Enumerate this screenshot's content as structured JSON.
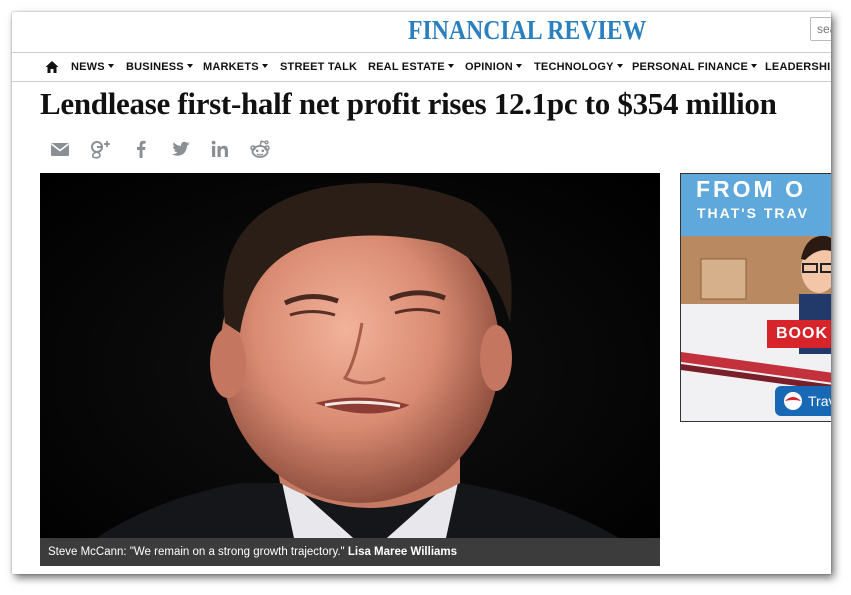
{
  "site": {
    "logo": "FINANCIAL REVIEW",
    "search_placeholder": "sea"
  },
  "nav": {
    "items": [
      {
        "label": "NEWS"
      },
      {
        "label": "BUSINESS"
      },
      {
        "label": "MARKETS"
      },
      {
        "label": "STREET TALK"
      },
      {
        "label": "REAL ESTATE"
      },
      {
        "label": "OPINION"
      },
      {
        "label": "TECHNOLOGY"
      },
      {
        "label": "PERSONAL FINANCE"
      },
      {
        "label": "LEADERSHIP"
      }
    ]
  },
  "article": {
    "headline": "Lendlease first-half net profit rises 12.1pc to $354 million",
    "caption_text": "Steve McCann: \"We remain on a strong growth trajectory.\" ",
    "caption_credit": "Lisa Maree Williams"
  },
  "share": {
    "icons": [
      "email-icon",
      "google-plus-icon",
      "facebook-icon",
      "twitter-icon",
      "linkedin-icon",
      "reddit-icon"
    ]
  },
  "ad": {
    "line1": "FROM O",
    "line2": "THAT'S TRAV",
    "button": "BOOK",
    "brand": "Trav"
  },
  "colors": {
    "logo": "#2a7fbe",
    "caption_bg": "#3c3c3c",
    "ad_bg": "#5fa8dc",
    "ad_button": "#d7242a"
  }
}
